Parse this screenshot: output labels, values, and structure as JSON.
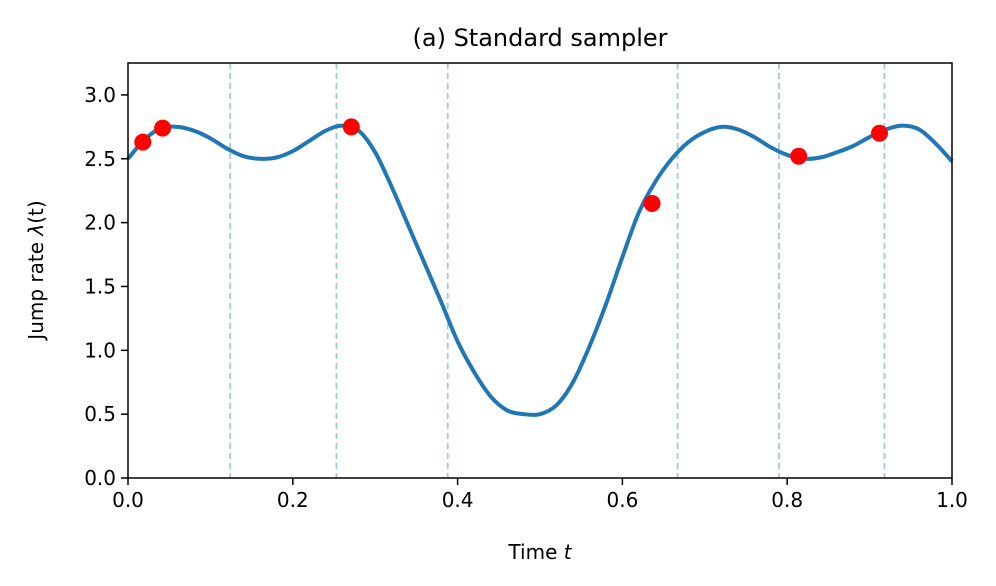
{
  "chart_data": {
    "type": "line",
    "title": "(a) Standard sampler",
    "xlabel": {
      "text": "Time ",
      "var": "t"
    },
    "ylabel": {
      "text": "Jump rate ",
      "var": "λ",
      "tail": "(t)"
    },
    "xlim": [
      0.0,
      1.0
    ],
    "ylim": [
      0.0,
      3.25
    ],
    "xticks": [
      0.0,
      0.2,
      0.4,
      0.6,
      0.8,
      1.0
    ],
    "xtick_labels": [
      "0.0",
      "0.2",
      "0.4",
      "0.6",
      "0.8",
      "1.0"
    ],
    "yticks": [
      0.0,
      0.5,
      1.0,
      1.5,
      2.0,
      2.5,
      3.0
    ],
    "ytick_labels": [
      "0.0",
      "0.5",
      "1.0",
      "1.5",
      "2.0",
      "2.5",
      "3.0"
    ],
    "grid": false,
    "colors": {
      "line": "#1f77b4",
      "points": "#ff0000",
      "vlines": "#9ecae1"
    },
    "series": [
      {
        "type": "line",
        "x": [
          0.0,
          0.02,
          0.04,
          0.06,
          0.08,
          0.1,
          0.12,
          0.14,
          0.16,
          0.18,
          0.2,
          0.22,
          0.24,
          0.26,
          0.28,
          0.3,
          0.32,
          0.34,
          0.36,
          0.38,
          0.4,
          0.42,
          0.44,
          0.46,
          0.48,
          0.5,
          0.52,
          0.54,
          0.56,
          0.58,
          0.6,
          0.62,
          0.64,
          0.66,
          0.68,
          0.7,
          0.72,
          0.74,
          0.76,
          0.78,
          0.8,
          0.82,
          0.84,
          0.86,
          0.88,
          0.9,
          0.92,
          0.94,
          0.96,
          0.98,
          1.0
        ],
        "y": [
          2.5,
          2.65,
          2.74,
          2.75,
          2.72,
          2.66,
          2.58,
          2.52,
          2.5,
          2.51,
          2.56,
          2.64,
          2.72,
          2.76,
          2.72,
          2.55,
          2.28,
          1.98,
          1.68,
          1.38,
          1.07,
          0.83,
          0.64,
          0.53,
          0.5,
          0.5,
          0.57,
          0.75,
          1.03,
          1.36,
          1.73,
          2.08,
          2.32,
          2.5,
          2.63,
          2.71,
          2.75,
          2.73,
          2.67,
          2.59,
          2.53,
          2.5,
          2.51,
          2.55,
          2.6,
          2.67,
          2.73,
          2.76,
          2.73,
          2.62,
          2.48
        ]
      },
      {
        "type": "scatter",
        "x": [
          0.018,
          0.042,
          0.271,
          0.636,
          0.814,
          0.912
        ],
        "y": [
          2.63,
          2.74,
          2.75,
          2.15,
          2.52,
          2.7
        ]
      },
      {
        "type": "vlines",
        "x": [
          0.124,
          0.253,
          0.388,
          0.667,
          0.79,
          0.918
        ]
      }
    ]
  }
}
